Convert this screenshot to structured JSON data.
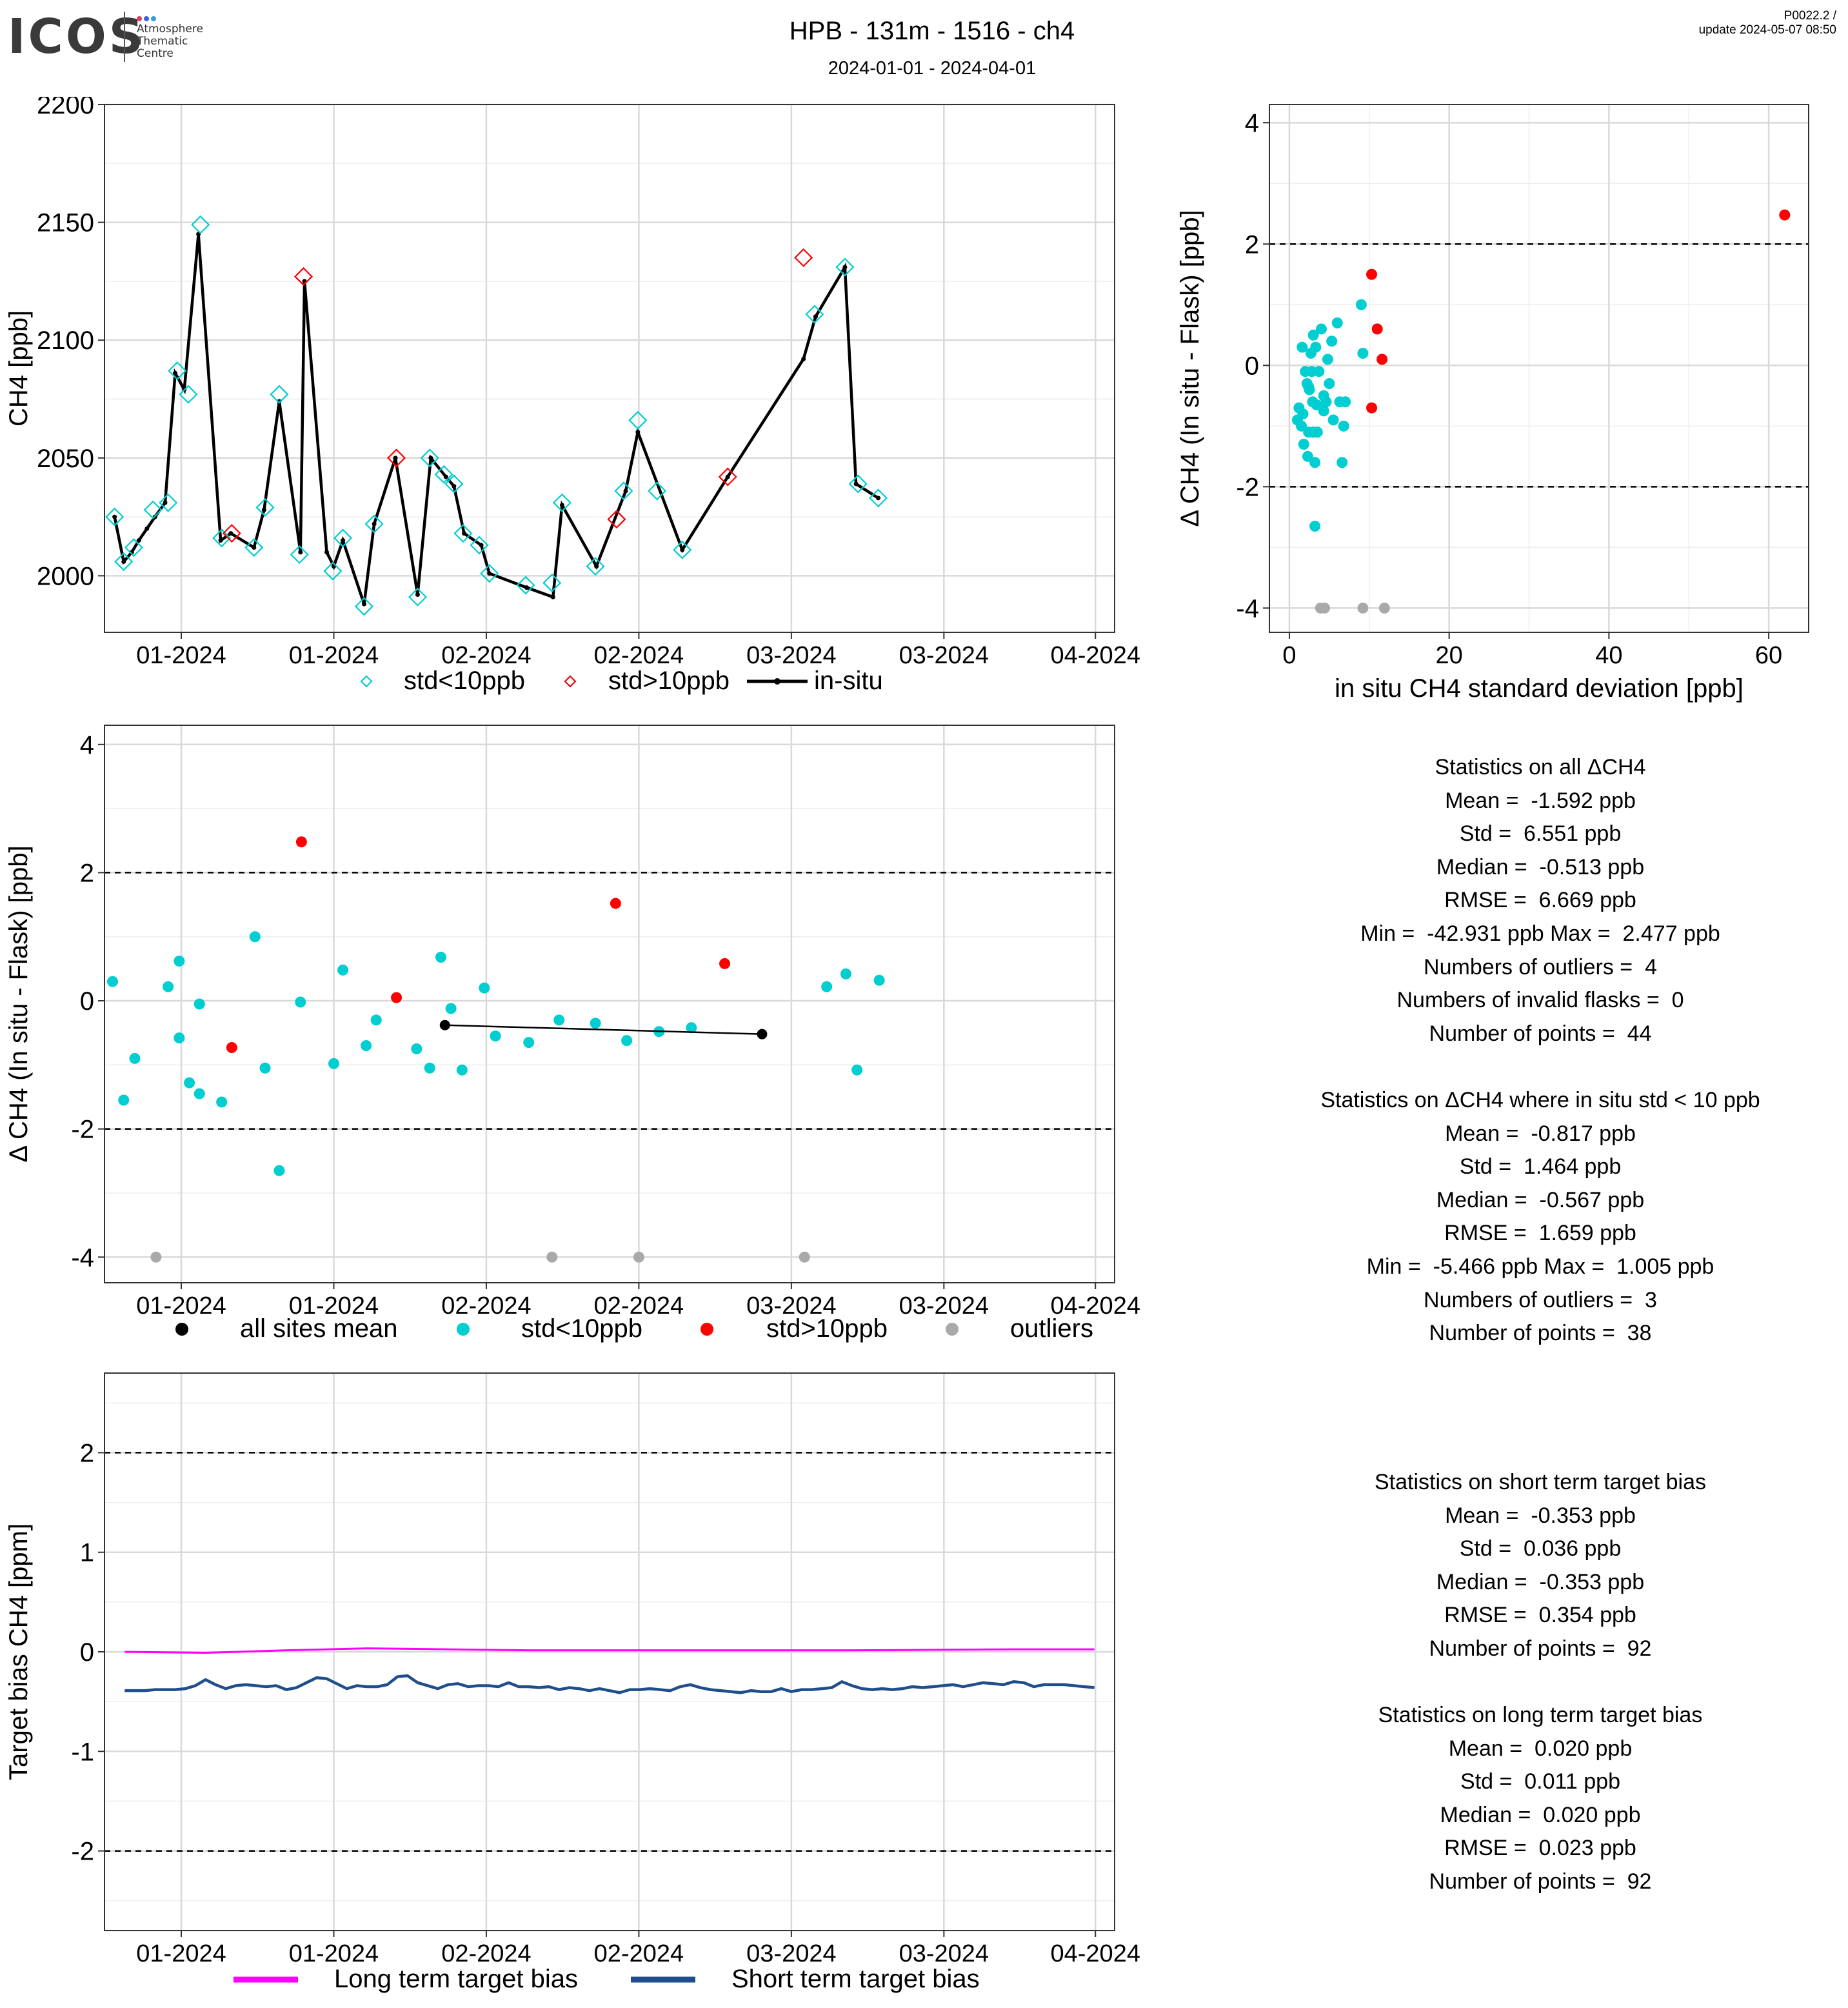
{
  "header": {
    "logo_text": "ICOS",
    "logo_sub": [
      "Atmosphere",
      "Thematic",
      "Centre"
    ],
    "title": "HPB - 131m - 1516 - ch4",
    "date_range": "2024-01-01 - 2024-04-01",
    "version": "P0022.2 /",
    "update": "update  2024-05-07 08:50"
  },
  "colors": {
    "cyan": "#00CED1",
    "red": "#FF0000",
    "grey": "#A9A9A9",
    "black": "#000000",
    "magenta": "#FF00FF",
    "navy": "#1F4E8C",
    "grid": "#D9D9D9"
  },
  "chart_data": [
    {
      "id": "timeseries",
      "type": "line",
      "ylabel": "CH4 [ppb]",
      "ylim": [
        1976,
        2200
      ],
      "yticks": [
        2000,
        2050,
        2100,
        2150,
        2200
      ],
      "xlim": [
        0,
        100
      ],
      "xticks": [
        {
          "x": 7.6,
          "label": "01-2024"
        },
        {
          "x": 22.7,
          "label": "01-2024"
        },
        {
          "x": 37.8,
          "label": "02-2024"
        },
        {
          "x": 52.9,
          "label": "02-2024"
        },
        {
          "x": 68.0,
          "label": "03-2024"
        },
        {
          "x": 83.1,
          "label": "03-2024"
        },
        {
          "x": 98.1,
          "label": "04-2024"
        }
      ],
      "legend": [
        {
          "name": "std<10ppb",
          "marker": "diamond",
          "color": "#00CED1"
        },
        {
          "name": "std>10ppb",
          "marker": "diamond",
          "color": "#FF0000"
        },
        {
          "name": "in-situ",
          "marker": "line",
          "color": "#000000"
        }
      ],
      "insitu": [
        [
          1.0,
          2025
        ],
        [
          1.9,
          2006
        ],
        [
          2.7,
          2010
        ],
        [
          3.4,
          2015
        ],
        [
          4.2,
          2020
        ],
        [
          5.0,
          2025
        ],
        [
          6.0,
          2031
        ],
        [
          7.0,
          2086
        ],
        [
          7.9,
          2079
        ],
        [
          9.3,
          2145
        ],
        [
          11.5,
          2015
        ],
        [
          12.5,
          2018
        ],
        [
          14.8,
          2012
        ],
        [
          15.8,
          2028
        ],
        [
          17.3,
          2074
        ],
        [
          19.4,
          2010
        ],
        [
          19.8,
          2125
        ],
        [
          22.0,
          2010
        ],
        [
          22.7,
          2004
        ],
        [
          23.6,
          2015
        ],
        [
          25.7,
          1988
        ],
        [
          26.7,
          2022
        ],
        [
          28.8,
          2050
        ],
        [
          31.0,
          1992
        ],
        [
          32.3,
          2050
        ],
        [
          33.8,
          2042
        ],
        [
          34.6,
          2038
        ],
        [
          35.6,
          2018
        ],
        [
          37.3,
          2013
        ],
        [
          38.1,
          2001
        ],
        [
          41.8,
          1995
        ],
        [
          44.4,
          1991
        ],
        [
          45.3,
          2030
        ],
        [
          48.7,
          2004
        ],
        [
          51.6,
          2036
        ],
        [
          52.8,
          2061
        ],
        [
          57.2,
          2011
        ],
        [
          61.7,
          2042
        ],
        [
          69.2,
          2092
        ],
        [
          70.4,
          2110
        ],
        [
          73.3,
          2131
        ],
        [
          74.4,
          2039
        ],
        [
          76.6,
          2033
        ]
      ],
      "flasks_low": [
        [
          1.0,
          2025
        ],
        [
          1.9,
          2006
        ],
        [
          2.9,
          2012
        ],
        [
          4.8,
          2028
        ],
        [
          6.3,
          2031
        ],
        [
          7.2,
          2087
        ],
        [
          8.3,
          2077
        ],
        [
          9.5,
          2149
        ],
        [
          11.6,
          2016
        ],
        [
          14.8,
          2012
        ],
        [
          15.9,
          2029
        ],
        [
          17.3,
          2077
        ],
        [
          19.3,
          2009
        ],
        [
          22.6,
          2002
        ],
        [
          23.6,
          2016
        ],
        [
          25.7,
          1987
        ],
        [
          26.7,
          2022
        ],
        [
          31.0,
          1991
        ],
        [
          32.2,
          2050
        ],
        [
          33.6,
          2043
        ],
        [
          34.6,
          2039
        ],
        [
          35.5,
          2018
        ],
        [
          37.1,
          2013
        ],
        [
          38.1,
          2001
        ],
        [
          41.7,
          1996
        ],
        [
          44.3,
          1997
        ],
        [
          45.3,
          2031
        ],
        [
          48.6,
          2004
        ],
        [
          51.4,
          2036
        ],
        [
          52.8,
          2066
        ],
        [
          54.7,
          2036
        ],
        [
          57.2,
          2011
        ],
        [
          70.3,
          2111
        ],
        [
          73.3,
          2131
        ],
        [
          74.6,
          2039
        ],
        [
          76.6,
          2033
        ]
      ],
      "flasks_high": [
        [
          12.6,
          2018
        ],
        [
          19.7,
          2127
        ],
        [
          28.9,
          2050
        ],
        [
          50.7,
          2024
        ],
        [
          61.7,
          2042
        ],
        [
          69.2,
          2135
        ]
      ]
    },
    {
      "id": "scatter_std",
      "type": "scatter",
      "xlabel": "in situ CH4 standard deviation [ppb]",
      "ylabel": "Δ CH4 (In situ - Flask) [ppb]",
      "xlim": [
        -2.5,
        65
      ],
      "ylim": [
        -4.4,
        4.3
      ],
      "xticks": [
        0,
        20,
        40,
        60
      ],
      "yticks": [
        -4,
        -2,
        0,
        2,
        4
      ],
      "hlines": [
        2,
        -2
      ],
      "cyan": [
        [
          1.2,
          -0.7
        ],
        [
          1.0,
          -0.9
        ],
        [
          1.5,
          -1.0
        ],
        [
          1.7,
          -0.8
        ],
        [
          1.6,
          0.3
        ],
        [
          2.0,
          -0.1
        ],
        [
          2.2,
          -0.3
        ],
        [
          2.5,
          -0.4
        ],
        [
          2.8,
          -0.1
        ],
        [
          2.4,
          -1.1
        ],
        [
          1.8,
          -1.3
        ],
        [
          2.3,
          -1.5
        ],
        [
          2.7,
          0.2
        ],
        [
          3.0,
          0.5
        ],
        [
          3.3,
          0.3
        ],
        [
          3.5,
          -1.1
        ],
        [
          3.0,
          -1.1
        ],
        [
          3.2,
          -1.6
        ],
        [
          3.4,
          -0.65
        ],
        [
          3.7,
          -0.1
        ],
        [
          4.0,
          0.6
        ],
        [
          4.3,
          -0.5
        ],
        [
          4.6,
          -0.6
        ],
        [
          4.8,
          0.1
        ],
        [
          5.0,
          -0.3
        ],
        [
          5.3,
          0.4
        ],
        [
          6.0,
          0.7
        ],
        [
          6.3,
          -0.6
        ],
        [
          6.8,
          -1.0
        ],
        [
          5.5,
          -0.9
        ],
        [
          6.6,
          -1.6
        ],
        [
          7.0,
          -0.6
        ],
        [
          9.0,
          1.0
        ],
        [
          9.2,
          0.2
        ],
        [
          3.2,
          -2.65
        ],
        [
          2.9,
          -0.6
        ],
        [
          4.3,
          -0.75
        ],
        [
          2.4,
          -0.35
        ]
      ],
      "red": [
        [
          10.3,
          1.5
        ],
        [
          11.0,
          0.6
        ],
        [
          11.6,
          0.1
        ],
        [
          10.3,
          -0.7
        ],
        [
          62,
          2.48
        ]
      ],
      "grey": [
        [
          3.9,
          -4
        ],
        [
          4.4,
          -4
        ],
        [
          9.2,
          -4
        ],
        [
          11.9,
          -4
        ]
      ]
    },
    {
      "id": "delta_time",
      "type": "scatter",
      "ylabel": "Δ CH4 (In situ - Flask) [ppb]",
      "ylim": [
        -4.4,
        4.3
      ],
      "yticks": [
        -4,
        -2,
        0,
        2,
        4
      ],
      "hlines": [
        2,
        -2
      ],
      "xlim": [
        0,
        100
      ],
      "xticks": [
        {
          "x": 7.6,
          "label": "01-2024"
        },
        {
          "x": 22.7,
          "label": "01-2024"
        },
        {
          "x": 37.8,
          "label": "02-2024"
        },
        {
          "x": 52.9,
          "label": "02-2024"
        },
        {
          "x": 68.0,
          "label": "03-2024"
        },
        {
          "x": 83.1,
          "label": "03-2024"
        },
        {
          "x": 98.1,
          "label": "04-2024"
        }
      ],
      "legend": [
        {
          "name": "all sites mean",
          "color": "#000000"
        },
        {
          "name": "std<10ppb",
          "color": "#00CED1"
        },
        {
          "name": "std>10ppb",
          "color": "#FF0000"
        },
        {
          "name": "outliers",
          "color": "#A9A9A9"
        }
      ],
      "cyan": [
        [
          0.8,
          0.3
        ],
        [
          1.9,
          -1.55
        ],
        [
          3.0,
          -0.9
        ],
        [
          6.3,
          0.22
        ],
        [
          7.4,
          0.62
        ],
        [
          7.4,
          -0.58
        ],
        [
          8.4,
          -1.28
        ],
        [
          9.4,
          -0.05
        ],
        [
          9.4,
          -1.45
        ],
        [
          11.6,
          -1.58
        ],
        [
          14.9,
          1.0
        ],
        [
          15.9,
          -1.05
        ],
        [
          17.3,
          -2.65
        ],
        [
          19.4,
          -0.02
        ],
        [
          22.7,
          -0.98
        ],
        [
          23.6,
          0.48
        ],
        [
          25.9,
          -0.7
        ],
        [
          26.9,
          -0.3
        ],
        [
          30.9,
          -0.75
        ],
        [
          32.2,
          -1.05
        ],
        [
          33.3,
          0.68
        ],
        [
          34.3,
          -0.12
        ],
        [
          35.4,
          -1.08
        ],
        [
          37.6,
          0.2
        ],
        [
          38.7,
          -0.55
        ],
        [
          42.0,
          -0.65
        ],
        [
          45.0,
          -0.3
        ],
        [
          48.6,
          -0.35
        ],
        [
          51.7,
          -0.62
        ],
        [
          54.9,
          -0.48
        ],
        [
          58.1,
          -0.42
        ],
        [
          71.5,
          0.22
        ],
        [
          73.4,
          0.42
        ],
        [
          74.5,
          -1.08
        ],
        [
          76.7,
          0.32
        ]
      ],
      "red": [
        [
          12.6,
          -0.73
        ],
        [
          19.5,
          2.48
        ],
        [
          28.9,
          0.05
        ],
        [
          50.6,
          1.52
        ],
        [
          61.4,
          0.58
        ]
      ],
      "grey": [
        [
          5.1,
          -4
        ],
        [
          44.3,
          -4
        ],
        [
          52.9,
          -4
        ],
        [
          69.3,
          -4
        ]
      ],
      "mean_line": [
        [
          33.7,
          -0.38
        ],
        [
          65.1,
          -0.52
        ]
      ]
    },
    {
      "id": "target_bias",
      "type": "line",
      "ylabel": "Target bias CH4 [ppm]",
      "ylim": [
        -2.8,
        2.8
      ],
      "yticks": [
        -2,
        -1,
        0,
        1,
        2
      ],
      "hlines": [
        2,
        -2
      ],
      "xlim": [
        0,
        100
      ],
      "xticks": [
        {
          "x": 7.6,
          "label": "01-2024"
        },
        {
          "x": 22.7,
          "label": "01-2024"
        },
        {
          "x": 37.8,
          "label": "02-2024"
        },
        {
          "x": 52.9,
          "label": "02-2024"
        },
        {
          "x": 68.0,
          "label": "03-2024"
        },
        {
          "x": 83.1,
          "label": "03-2024"
        },
        {
          "x": 98.1,
          "label": "04-2024"
        }
      ],
      "legend": [
        {
          "name": "Long term target bias",
          "color": "#FF00FF"
        },
        {
          "name": "Short term target bias",
          "color": "#1F4E8C"
        }
      ],
      "series": [
        {
          "name": "Long term target bias",
          "x": [
            2,
            10,
            18,
            26,
            34,
            42,
            50,
            58,
            66,
            74,
            82,
            90,
            98
          ],
          "y": [
            0.0,
            -0.01,
            0.015,
            0.035,
            0.025,
            0.015,
            0.015,
            0.015,
            0.015,
            0.015,
            0.02,
            0.025,
            0.025
          ]
        },
        {
          "name": "Short term target bias",
          "x": [
            2,
            3,
            4,
            5,
            6,
            7,
            8,
            9,
            10,
            11,
            12,
            13,
            14,
            15,
            16,
            17,
            18,
            19,
            20,
            21,
            22,
            23,
            24,
            25,
            26,
            27,
            28,
            29,
            30,
            31,
            32,
            33,
            34,
            35,
            36,
            37,
            38,
            39,
            40,
            41,
            42,
            43,
            44,
            45,
            46,
            47,
            48,
            49,
            50,
            51,
            52,
            53,
            54,
            55,
            56,
            57,
            58,
            59,
            60,
            61,
            62,
            63,
            64,
            65,
            66,
            67,
            68,
            69,
            70,
            71,
            72,
            73,
            74,
            75,
            76,
            77,
            78,
            79,
            80,
            81,
            82,
            83,
            84,
            85,
            86,
            87,
            88,
            89,
            90,
            91,
            92,
            93,
            94,
            95,
            96,
            97,
            98
          ],
          "y": [
            -0.39,
            -0.39,
            -0.39,
            -0.38,
            -0.38,
            -0.38,
            -0.37,
            -0.34,
            -0.28,
            -0.33,
            -0.37,
            -0.34,
            -0.33,
            -0.34,
            -0.35,
            -0.34,
            -0.38,
            -0.36,
            -0.31,
            -0.26,
            -0.27,
            -0.32,
            -0.37,
            -0.34,
            -0.35,
            -0.35,
            -0.33,
            -0.25,
            -0.24,
            -0.31,
            -0.34,
            -0.37,
            -0.33,
            -0.32,
            -0.35,
            -0.34,
            -0.34,
            -0.35,
            -0.31,
            -0.35,
            -0.35,
            -0.36,
            -0.35,
            -0.38,
            -0.36,
            -0.37,
            -0.39,
            -0.37,
            -0.39,
            -0.41,
            -0.38,
            -0.38,
            -0.37,
            -0.38,
            -0.39,
            -0.35,
            -0.33,
            -0.36,
            -0.38,
            -0.39,
            -0.4,
            -0.41,
            -0.39,
            -0.4,
            -0.4,
            -0.37,
            -0.4,
            -0.38,
            -0.38,
            -0.37,
            -0.36,
            -0.3,
            -0.34,
            -0.37,
            -0.38,
            -0.37,
            -0.38,
            -0.37,
            -0.35,
            -0.36,
            -0.35,
            -0.34,
            -0.33,
            -0.35,
            -0.33,
            -0.31,
            -0.32,
            -0.33,
            -0.3,
            -0.31,
            -0.35,
            -0.33,
            -0.33,
            -0.33,
            -0.34,
            -0.35,
            -0.36
          ]
        }
      ]
    }
  ],
  "stats": {
    "all": {
      "title": "Statistics on all ΔCH4",
      "lines": [
        "Mean =  -1.592 ppb",
        "Std =  6.551 ppb",
        "Median =  -0.513 ppb",
        "RMSE =  6.669 ppb",
        "Min =  -42.931 ppb Max =  2.477 ppb",
        "Numbers of outliers =  4",
        "Numbers of invalid flasks =  0",
        "Number of points =  44"
      ]
    },
    "std10": {
      "title": "Statistics on ΔCH4 where in situ std < 10 ppb",
      "lines": [
        "Mean =  -0.817 ppb",
        "Std =  1.464 ppb",
        "Median =  -0.567 ppb",
        "RMSE =  1.659 ppb",
        "Min =  -5.466 ppb Max =  1.005 ppb",
        "Numbers of outliers =  3",
        "Number of points =  38"
      ]
    },
    "short": {
      "title": "Statistics on short term target bias",
      "lines": [
        "Mean =  -0.353 ppb",
        "Std =  0.036 ppb",
        "Median =  -0.353 ppb",
        "RMSE =  0.354 ppb",
        "Number of points =  92"
      ]
    },
    "long": {
      "title": "Statistics on long term target bias",
      "lines": [
        "Mean =  0.020 ppb",
        "Std =  0.011 ppb",
        "Median =  0.020 ppb",
        "RMSE =  0.023 ppb",
        "Number of points =  92"
      ]
    }
  }
}
